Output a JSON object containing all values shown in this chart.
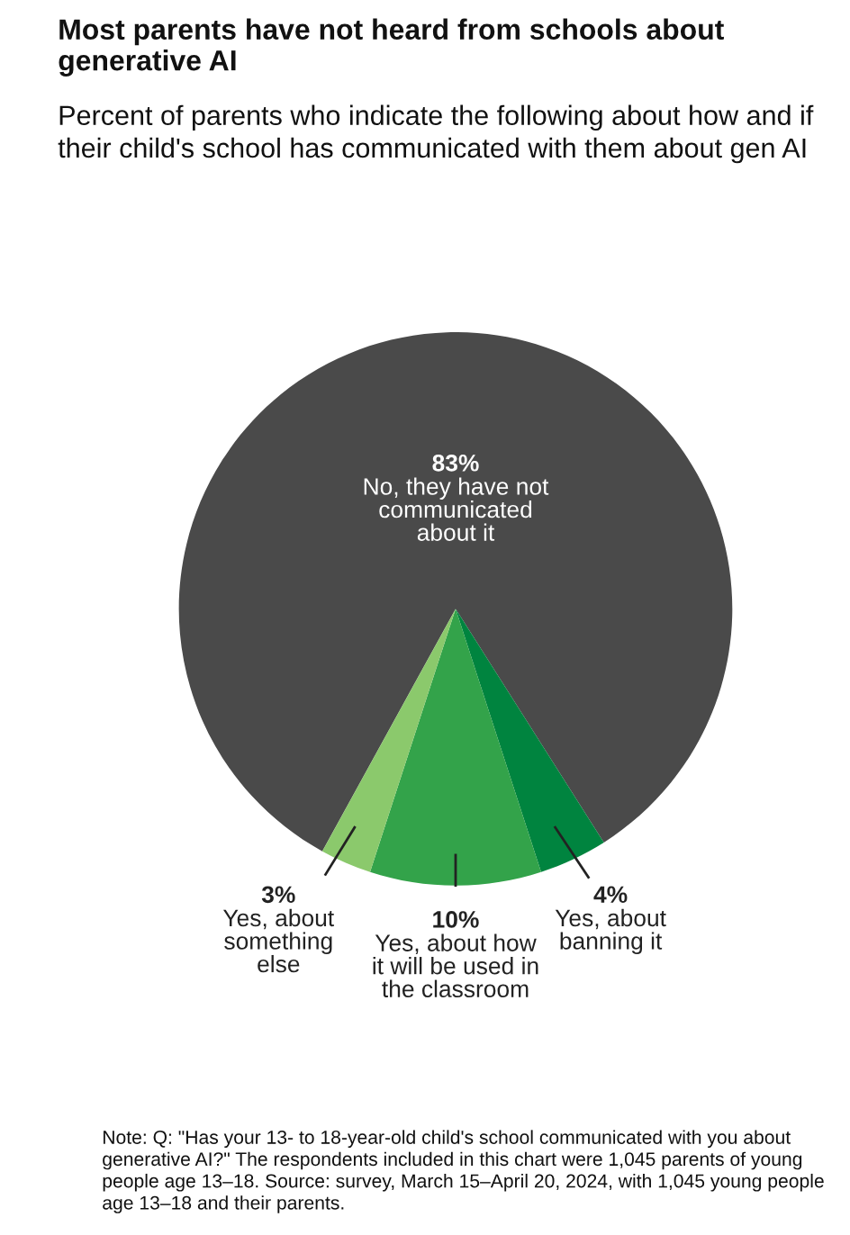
{
  "chart_data": {
    "type": "pie",
    "title": "Most parents have not heard from schools about generative AI",
    "subtitle": "Percent of parents who indicate the following about how and if their child's school has communicated with them about gen AI",
    "categories": [
      "No, they have not\ncommunicated\nabout it",
      "Yes, about\nbanning it",
      "Yes, about how\nit will be used in\nthe classroom",
      "Yes, about\nsomething\nelse"
    ],
    "values": [
      83,
      4,
      10,
      3
    ],
    "value_labels": [
      "83%",
      "4%",
      "10%",
      "3%"
    ],
    "colors": [
      "#4a4a4a",
      "#00843f",
      "#33a34a",
      "#8bc96c"
    ],
    "legend": false,
    "annotations": [
      "Note: Q: \"Has your 13- to 18-year-old child's school communicated with you about generative AI?\" The respondents included in this chart were 1,045 parents of young people age 13–18. Source: survey, March 15–April 20, 2024, with 1,045 young people age 13–18 and their parents."
    ]
  }
}
